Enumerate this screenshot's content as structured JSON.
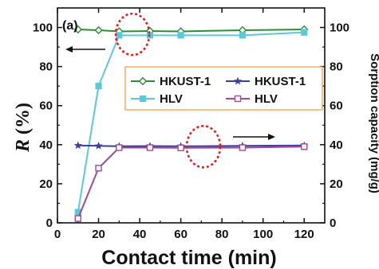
{
  "chart_data": {
    "type": "line",
    "panel_label": "(a)",
    "xlabel": "Contact time (min)",
    "ylabel_left": "R (%)",
    "ylabel_left_italic": "R",
    "ylabel_left_rest": " (%)",
    "ylabel_right": "Sorption capacity (mg/g)",
    "xlim": [
      0,
      130
    ],
    "ylim_left": [
      0,
      110
    ],
    "ylim_right": [
      0,
      110
    ],
    "xticks": [
      0,
      20,
      40,
      60,
      80,
      100,
      120
    ],
    "yticks": [
      0,
      20,
      40,
      60,
      80,
      100
    ],
    "x": [
      10,
      20,
      30,
      45,
      60,
      90,
      120
    ],
    "series": [
      {
        "name": "HKUST-1",
        "axis": "left",
        "color": "#2e8b3a",
        "marker": "diamond-open",
        "values": [
          99,
          98.6,
          98,
          98.2,
          98,
          98.6,
          99
        ]
      },
      {
        "name": "HLV",
        "axis": "left",
        "color": "#5cc8d8",
        "marker": "square-filled",
        "values": [
          5.5,
          70,
          96,
          96,
          96,
          96,
          97.5
        ]
      },
      {
        "name": "HKUST-1",
        "axis": "right",
        "color": "#3a3f9a",
        "marker": "star",
        "values": [
          39.6,
          39.4,
          39.2,
          39.3,
          39.2,
          39.4,
          39.6
        ]
      },
      {
        "name": "HLV",
        "axis": "right",
        "color": "#a0489a",
        "marker": "square-open",
        "values": [
          2.2,
          28,
          38.5,
          38.5,
          38.4,
          38.5,
          39
        ]
      }
    ],
    "legend_position": "center-right",
    "annotations": {
      "left_arrow": "points to left axis",
      "right_arrow": "points to right axis"
    },
    "colors": {
      "legend_border": "#f0a050",
      "highlight_circle": "#e02020"
    }
  }
}
